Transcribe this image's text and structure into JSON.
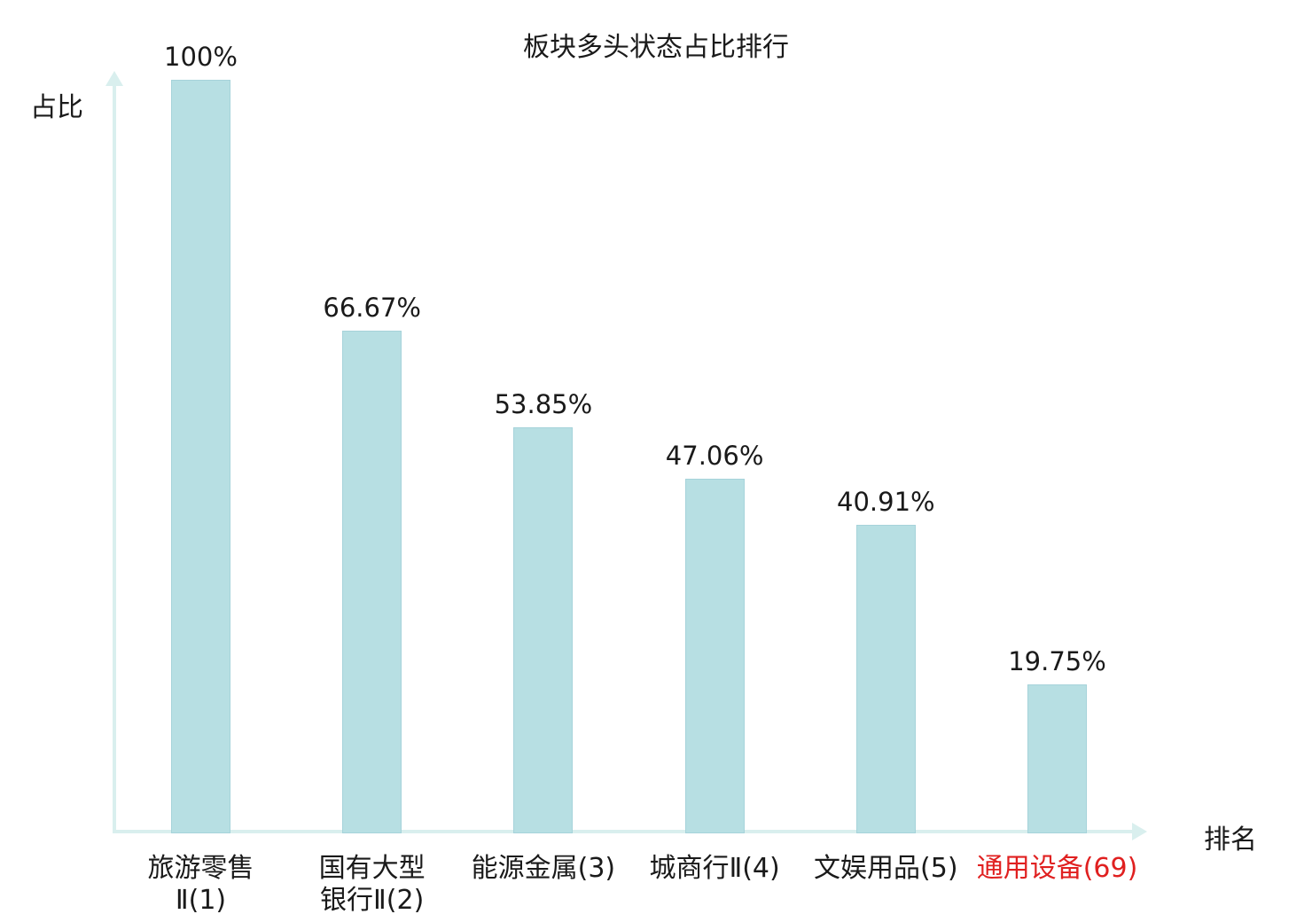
{
  "chart_data": {
    "type": "bar",
    "title": "板块多头状态占比排行",
    "xlabel": "排名",
    "ylabel": "占比",
    "ylim": [
      0,
      100
    ],
    "grid": false,
    "legend": "none",
    "bar_color": "#b7dfe3",
    "axis_color": "#d9efee",
    "text_color": "#1a1a1a",
    "highlight_color": "#e02020",
    "categories": [
      "旅游零售Ⅱ(1)",
      "国有大型银行Ⅱ(2)",
      "能源金属(3)",
      "城商行Ⅱ(4)",
      "文娱用品(5)",
      "通用设备(69)"
    ],
    "category_lines": [
      [
        "旅游零售",
        "Ⅱ(1)"
      ],
      [
        "国有大型",
        "银行Ⅱ(2)"
      ],
      [
        "能源金属(3)"
      ],
      [
        "城商行Ⅱ(4)"
      ],
      [
        "文娱用品(5)"
      ],
      [
        "通用设备(69)"
      ]
    ],
    "category_colors": [
      "#1a1a1a",
      "#1a1a1a",
      "#1a1a1a",
      "#1a1a1a",
      "#1a1a1a",
      "#e02020"
    ],
    "values": [
      100,
      66.67,
      53.85,
      47.06,
      40.91,
      19.75
    ],
    "value_labels": [
      "100%",
      "66.67%",
      "53.85%",
      "47.06%",
      "40.91%",
      "19.75%"
    ]
  }
}
